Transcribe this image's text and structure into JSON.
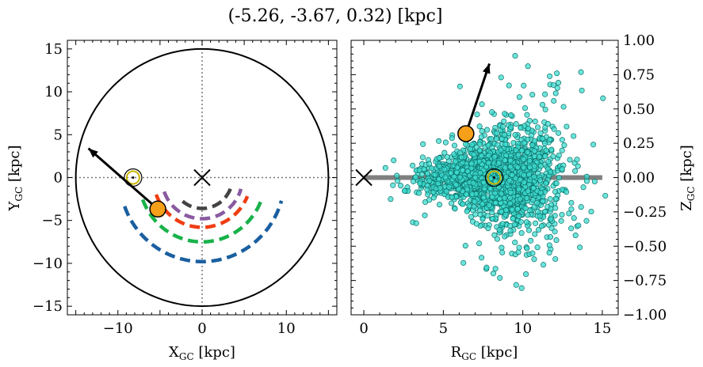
{
  "figure_title": "(-5.26, -3.67, 0.32) [kpc]",
  "chart_data": [
    {
      "type": "scatter",
      "panel": "xy",
      "xlabel_main": "X",
      "xlabel_sub": "GC",
      "xlabel_unit": "[kpc]",
      "ylabel_main": "Y",
      "ylabel_sub": "GC",
      "ylabel_unit": "[kpc]",
      "xlim": [
        -16,
        16
      ],
      "ylim": [
        -16,
        16
      ],
      "xticks": [
        -10,
        0,
        10
      ],
      "yticks": [
        -15,
        -10,
        -5,
        0,
        5,
        10,
        15
      ],
      "xtick_labels": [
        "−10",
        "0",
        "10"
      ],
      "ytick_labels": [
        "−15",
        "−10",
        "−5",
        "0",
        "5",
        "10",
        "15"
      ],
      "outer_circle_radius": 15,
      "galactic_center": [
        0,
        0
      ],
      "sun_position": [
        -8.2,
        0
      ],
      "object_position": [
        -5.26,
        -3.67
      ],
      "velocity_arrow_tip": [
        -13.5,
        3.4
      ],
      "arms": [
        {
          "color": "#1a5fa0",
          "radius": 9.8,
          "ang_start": 200,
          "ang_end": 345
        },
        {
          "color": "#19b24a",
          "radius": 7.5,
          "ang_start": 200,
          "ang_end": 340
        },
        {
          "color": "#ef3d12",
          "radius": 5.8,
          "ang_start": 200,
          "ang_end": 340
        },
        {
          "color": "#8a5aa0",
          "radius": 4.8,
          "ang_start": 200,
          "ang_end": 345
        },
        {
          "color": "#444444",
          "radius": 3.6,
          "ang_start": 230,
          "ang_end": 345
        },
        {
          "color": "#f5a018",
          "radius": 6.5,
          "ang_start": 215,
          "ang_end": 225
        }
      ]
    },
    {
      "type": "scatter",
      "panel": "rz",
      "xlabel_main": "R",
      "xlabel_sub": "GC",
      "xlabel_unit": "[kpc]",
      "ylabel_main": "Z",
      "ylabel_sub": "GC",
      "ylabel_unit": "[kpc]",
      "xlim": [
        -0.8,
        16
      ],
      "ylim": [
        -1,
        1
      ],
      "xticks": [
        0,
        5,
        10,
        15
      ],
      "yticks": [
        -1.0,
        -0.75,
        -0.5,
        -0.25,
        0.0,
        0.25,
        0.5,
        0.75,
        1.0
      ],
      "xtick_labels": [
        "0",
        "5",
        "10",
        "15"
      ],
      "ytick_labels": [
        "−1.00",
        "−0.75",
        "−0.50",
        "−0.25",
        "0.00",
        "0.25",
        "0.50",
        "0.75",
        "1.00"
      ],
      "disk_line": {
        "x": [
          0,
          15
        ],
        "z": 0,
        "color": "#808080"
      },
      "galactic_center": [
        0,
        0
      ],
      "sun_position": [
        8.2,
        0
      ],
      "object_position": [
        6.42,
        0.32
      ],
      "velocity_arrow_tip": [
        7.9,
        0.83
      ],
      "stars_color": "#3ddcd0",
      "stars_summary": {
        "center_R": 8.2,
        "center_Z": 0,
        "spread_R": 2.2,
        "spread_Z": 0.17,
        "count": 1800
      }
    }
  ],
  "colors": {
    "sun_ring": "#c8b400",
    "object_fill": "#f5a018",
    "stars_edge": "#0b6f68"
  }
}
